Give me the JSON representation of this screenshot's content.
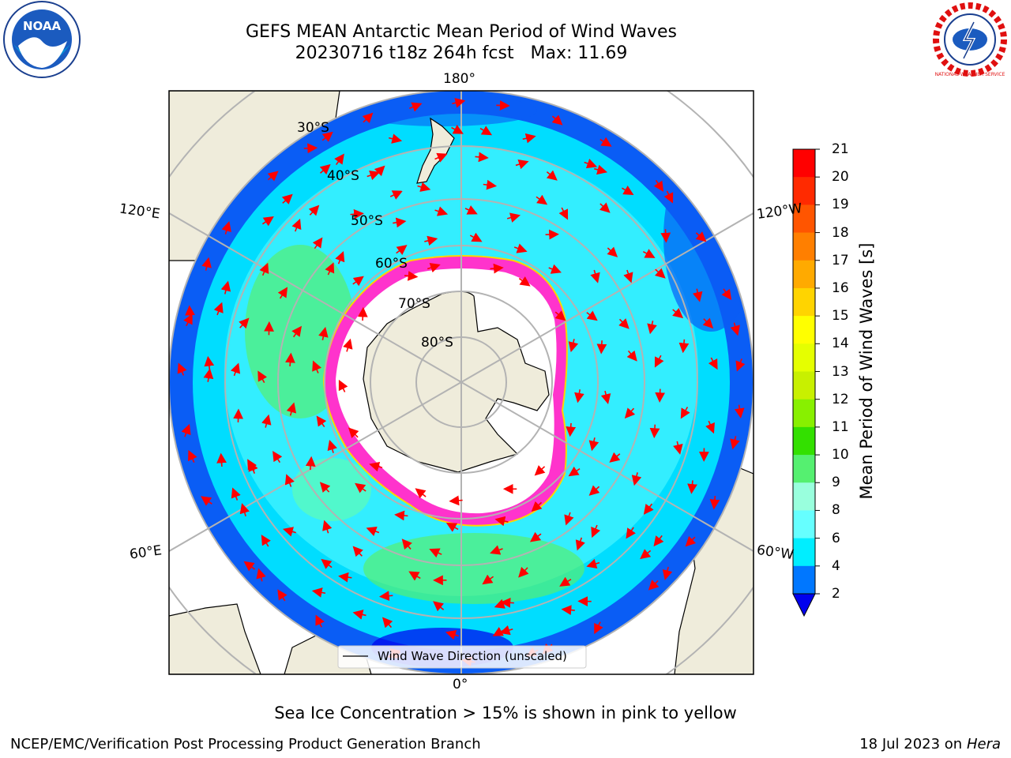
{
  "title_line1": "GEFS MEAN Antarctic Mean Period of Wind Waves",
  "title_line2": "20230716 t18z 264h fcst   Max: 11.69",
  "map": {
    "lon_labels": [
      "180°",
      "120°E",
      "120°W",
      "60°E",
      "60°W",
      "0°"
    ],
    "lat_labels": [
      "30°S",
      "40°S",
      "50°S",
      "60°S",
      "70°S",
      "80°S"
    ],
    "legend_label": "Wind Wave Direction (unscaled)"
  },
  "colorbar": {
    "label": "Mean Period of Wind Waves [s]",
    "ticks": [
      "21",
      "20",
      "19",
      "18",
      "17",
      "16",
      "15",
      "14",
      "13",
      "12",
      "11",
      "10",
      "9",
      "8",
      "6",
      "4",
      "2"
    ],
    "colors": [
      "#ff0000",
      "#ff2a00",
      "#ff5500",
      "#ff7f00",
      "#ffaa00",
      "#ffd400",
      "#ffff00",
      "#e5ff00",
      "#c8f000",
      "#88f000",
      "#33e000",
      "#55f070",
      "#99ffdd",
      "#66ffff",
      "#00eeff",
      "#0077ff"
    ],
    "extend_color": "#0000ee"
  },
  "colors": {
    "land": "#efecdb",
    "ocean_deep": "#0a5df5",
    "ocean_mid": "#00ddff",
    "ocean_light": "#66ffff",
    "ice_edge": "#ff33cc",
    "arrow": "#ff0000",
    "grid": "#b3b3b3"
  },
  "footer": {
    "note": "Sea Ice Concentration > 15% is shown in pink to yellow",
    "left": "NCEP/EMC/Verification Post Processing Product Generation Branch",
    "date": "18 Jul 2023 on ",
    "host": "Hera"
  },
  "logos": {
    "noaa_text": "NOAA",
    "nws_text": "NATIONAL WEATHER SERVICE"
  }
}
